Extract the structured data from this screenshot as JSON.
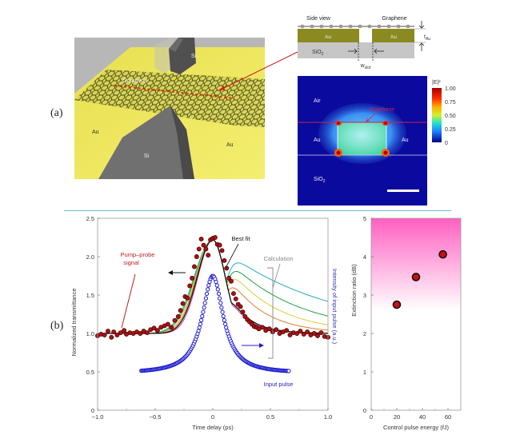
{
  "panel_a": {
    "label": "(a)",
    "render": {
      "labels": {
        "si_top": "Si",
        "si_bottom": "Si",
        "graphene": "Graphene",
        "au_left": "Au",
        "au_right": "Au"
      }
    },
    "side_view": {
      "title": "Side view",
      "graphene_label": "Graphene",
      "au_left": "Au",
      "au_right": "Au",
      "sio2": "SiO2",
      "sio2_main": "SiO",
      "sio2_sub": "2",
      "t_label_main": "t",
      "t_label_sub": "Au",
      "w_label_main": "w",
      "w_label_sub": "slot"
    },
    "field_map": {
      "air": "Air",
      "graphene": "Graphene",
      "au_left": "Au",
      "au_right": "Au",
      "sio2_main": "SiO",
      "sio2_sub": "2",
      "colorbar_title": "|E|²",
      "colorbar_ticks": [
        "1.00",
        "0.75",
        "0.50",
        "0.25",
        "0"
      ],
      "colors": {
        "background": "#0a0a9e",
        "slot": "#7fe0d0",
        "hot": "#cc1100"
      }
    }
  },
  "panel_b": {
    "label": "(b)"
  },
  "chart_data": [
    {
      "type": "line",
      "title": "",
      "xlabel": "Time delay (ps)",
      "ylabel": "Normalized transmittance",
      "ylabel_right": "Intensity of input pulse (a.u.)",
      "xlim": [
        -1.0,
        1.0
      ],
      "ylim": [
        0,
        2.5
      ],
      "xticks": [
        "−1.0",
        "−0.5",
        "0",
        "0.5",
        "1.0"
      ],
      "xtick_values": [
        -1.0,
        -0.5,
        0,
        0.5,
        1.0
      ],
      "yticks": [
        "0",
        "0.5",
        "1.0",
        "1.5",
        "2.0",
        "2.5"
      ],
      "ytick_values": [
        0,
        0.5,
        1.0,
        1.5,
        2.0,
        2.5
      ],
      "annotations": {
        "pump_probe": [
          "Pump–probe",
          "signal"
        ],
        "best_fit": "Best fit",
        "calculation": "Calculation",
        "input_pulse": "Input pulse"
      },
      "series": [
        {
          "name": "Pump–probe signal",
          "kind": "markers",
          "color": "#b01010",
          "x": [
            -1.0,
            -0.97,
            -0.94,
            -0.91,
            -0.88,
            -0.86,
            -0.83,
            -0.8,
            -0.77,
            -0.75,
            -0.72,
            -0.69,
            -0.66,
            -0.63,
            -0.6,
            -0.57,
            -0.54,
            -0.51,
            -0.48,
            -0.45,
            -0.42,
            -0.39,
            -0.36,
            -0.33,
            -0.3,
            -0.28,
            -0.26,
            -0.24,
            -0.22,
            -0.2,
            -0.18,
            -0.16,
            -0.14,
            -0.12,
            -0.1,
            -0.08,
            -0.06,
            -0.04,
            -0.02,
            0.0,
            0.02,
            0.04,
            0.06,
            0.08,
            0.1,
            0.12,
            0.14,
            0.16,
            0.18,
            0.2,
            0.22,
            0.24,
            0.26,
            0.28,
            0.3,
            0.32,
            0.34,
            0.36,
            0.38,
            0.4,
            0.43,
            0.46,
            0.49,
            0.52,
            0.55,
            0.58,
            0.61,
            0.64,
            0.67,
            0.7,
            0.73,
            0.76,
            0.79,
            0.82,
            0.85,
            0.88,
            0.91,
            0.94,
            0.97,
            1.0
          ],
          "y": [
            0.97,
            0.99,
            0.98,
            1.03,
            0.95,
            1.02,
            0.98,
            1.01,
            1.04,
            0.99,
            1.01,
            1.0,
            1.02,
            1.0,
            1.03,
            1.01,
            1.05,
            1.07,
            1.04,
            1.08,
            1.1,
            1.12,
            1.08,
            1.17,
            1.22,
            1.3,
            1.39,
            1.48,
            1.46,
            1.62,
            1.72,
            1.87,
            2.0,
            2.1,
            2.23,
            2.15,
            2.1,
            2.02,
            2.22,
            2.24,
            2.25,
            2.16,
            2.15,
            2.08,
            1.95,
            1.85,
            1.72,
            1.68,
            1.52,
            1.45,
            1.38,
            1.35,
            1.28,
            1.22,
            1.18,
            1.15,
            1.12,
            1.09,
            1.08,
            1.06,
            1.08,
            1.04,
            1.06,
            1.02,
            1.05,
            1.0,
            1.02,
            1.04,
            0.98,
            1.01,
            1.0,
            1.03,
            0.99,
            1.02,
            0.98,
            1.0,
            0.97,
            1.01,
            0.96,
            0.95
          ]
        },
        {
          "name": "Best fit",
          "kind": "line",
          "color": "#111111",
          "peak": 2.22,
          "center": 0.0,
          "width_left": 0.2,
          "decay_right": 0.17
        },
        {
          "name": "Calculation 1",
          "kind": "line",
          "color": "#d040a0",
          "peak": 2.22,
          "center": 0.0,
          "width_left": 0.19,
          "decay_right": 0.16
        },
        {
          "name": "Calculation 2",
          "kind": "line",
          "color": "#e08030",
          "peak": 2.22,
          "center": 0.0,
          "width_left": 0.21,
          "decay_right": 0.3
        },
        {
          "name": "Calculation 3",
          "kind": "line",
          "color": "#d8d030",
          "peak": 2.22,
          "center": 0.0,
          "width_left": 0.22,
          "decay_right": 0.42
        },
        {
          "name": "Calculation 4",
          "kind": "line",
          "color": "#20a040",
          "peak": 2.22,
          "center": 0.0,
          "width_left": 0.23,
          "decay_right": 0.6
        },
        {
          "name": "Calculation 5",
          "kind": "line",
          "color": "#20b0c0",
          "peak": 2.22,
          "center": 0.0,
          "width_left": 0.24,
          "decay_right": 0.95
        },
        {
          "name": "Input pulse",
          "kind": "open-markers",
          "color": "#1a1ad0",
          "xrange": [
            -0.62,
            0.66
          ],
          "baseline": 0.49,
          "peak": 1.75,
          "center": 0.0,
          "width": 0.11
        }
      ]
    },
    {
      "type": "scatter",
      "title": "",
      "xlabel": "Control pulse energy (fJ)",
      "ylabel": "Extinction ratio (dB)",
      "xlim": [
        0,
        70
      ],
      "ylim": [
        0,
        5
      ],
      "xticks": [
        "0",
        "20",
        "40",
        "60"
      ],
      "xtick_values": [
        0,
        20,
        40,
        60
      ],
      "yticks": [
        "0",
        "1",
        "2",
        "3",
        "4",
        "5"
      ],
      "ytick_values": [
        0,
        1,
        2,
        3,
        4,
        5
      ],
      "background_gradient": {
        "from_value": 5,
        "to_value": 2.6,
        "color": "#ff60c0"
      },
      "series": [
        {
          "name": "Extinction ratio",
          "color": "#cc1010",
          "x": [
            20,
            35,
            56
          ],
          "y": [
            2.75,
            3.47,
            4.06
          ]
        }
      ]
    }
  ]
}
